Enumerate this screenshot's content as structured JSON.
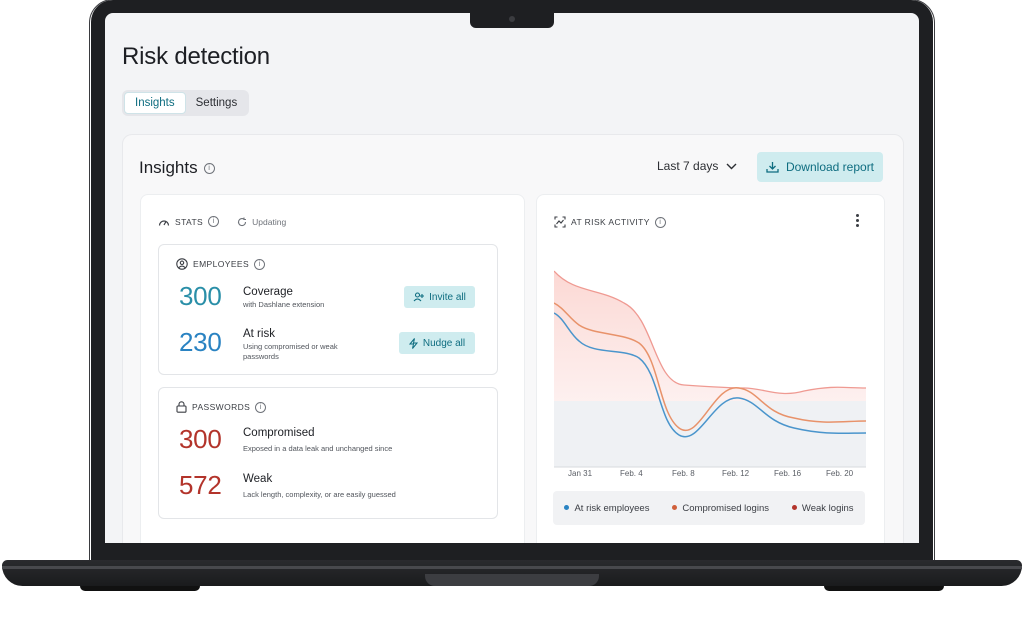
{
  "page": {
    "title": "Risk detection"
  },
  "tabs": [
    {
      "label": "Insights",
      "active": true
    },
    {
      "label": "Settings",
      "active": false
    }
  ],
  "insights": {
    "title": "Insights",
    "period": "Last 7 days",
    "download_label": "Download report"
  },
  "stats": {
    "header": "STATS",
    "status": "Updating",
    "employees": {
      "header": "EMPLOYEES",
      "coverage": {
        "value": "300",
        "title": "Coverage",
        "desc": "with Dashlane extension",
        "button": "Invite all"
      },
      "at_risk": {
        "value": "230",
        "title": "At risk",
        "desc": "Using compromised or weak passwords",
        "button": "Nudge all"
      }
    },
    "passwords": {
      "header": "PASSWORDS",
      "compromised": {
        "value": "300",
        "title": "Compromised",
        "desc": "Exposed in a data leak and unchanged since"
      },
      "weak": {
        "value": "572",
        "title": "Weak",
        "desc": "Lack length, complexity, or are easily guessed"
      }
    }
  },
  "activity": {
    "header": "AT RISK ACTIVITY"
  },
  "colors": {
    "accent": "#0e6d80",
    "blue": "#2a8fc7",
    "red": "#b3342b",
    "orange": "#e98b62",
    "salmon": "#ee8f86"
  },
  "chart_data": {
    "type": "area",
    "x": [
      "Jan 31",
      "Feb. 4",
      "Feb. 8",
      "Feb. 12",
      "Feb. 16",
      "Feb. 20"
    ],
    "series": [
      {
        "name": "At risk employees",
        "color": "#3a8dc9"
      },
      {
        "name": "Compromised logins",
        "color": "#e58a5e"
      },
      {
        "name": "Weak logins",
        "color": "#e8877e"
      }
    ],
    "grid": false,
    "legend": "bottom"
  }
}
